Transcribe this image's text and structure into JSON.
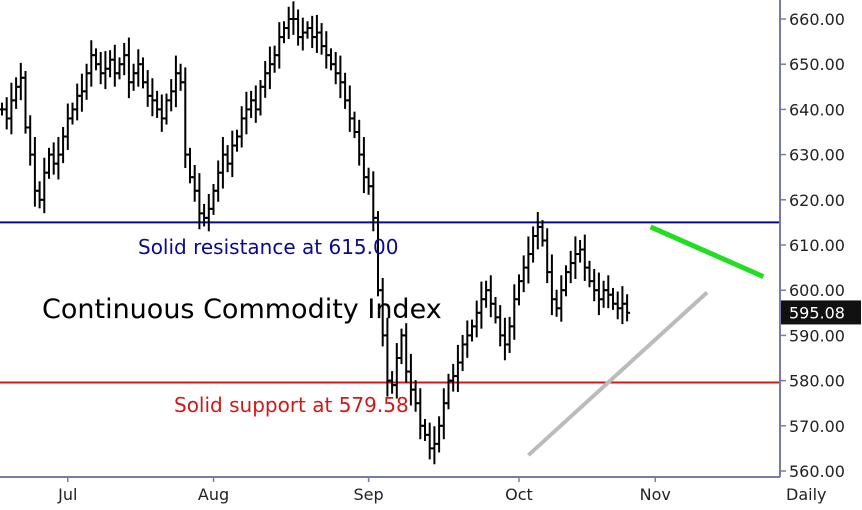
{
  "chart_data": {
    "type": "ohlc",
    "title": "Continuous Commodity Index",
    "period_label": "Daily",
    "ylim": [
      559,
      664
    ],
    "y_ticks": [
      "560.00",
      "570.00",
      "580.00",
      "590.00",
      "600.00",
      "610.00",
      "620.00",
      "630.00",
      "640.00",
      "650.00",
      "660.00"
    ],
    "y_tick_values": [
      560,
      570,
      580,
      590,
      600,
      610,
      620,
      630,
      640,
      650,
      660
    ],
    "x_months": [
      {
        "label": "Jul",
        "index": 14
      },
      {
        "label": "Aug",
        "index": 45
      },
      {
        "label": "Sep",
        "index": 78
      },
      {
        "label": "Oct",
        "index": 110
      },
      {
        "label": "Nov",
        "index": 139
      }
    ],
    "last_price": "595.08",
    "last_value": 595.08,
    "horizontal_lines": [
      {
        "value": 615.0,
        "label": "Solid resistance at 615.00",
        "color": "#0a0a8c"
      },
      {
        "value": 579.58,
        "label": "Solid support at 579.58",
        "color": "#d01818"
      }
    ],
    "trendlines": [
      {
        "name": "green",
        "color": "#22dd22",
        "from": [
          138,
          614.0
        ],
        "to": [
          162,
          603.0
        ]
      },
      {
        "name": "gray",
        "color": "#bbbbbb",
        "from": [
          112,
          563.5
        ],
        "to": [
          150,
          599.5
        ]
      }
    ],
    "closes": [
      640,
      638,
      642,
      645,
      647,
      636,
      630,
      622,
      620,
      626,
      630,
      628,
      630,
      634,
      638,
      640,
      643,
      644,
      648,
      652,
      650,
      648,
      649,
      651,
      648,
      650,
      652,
      646,
      648,
      650,
      646,
      643,
      642,
      640,
      638,
      642,
      644,
      648,
      646,
      630,
      625,
      622,
      617,
      616,
      618,
      622,
      626,
      630,
      628,
      632,
      634,
      638,
      640,
      642,
      640,
      645,
      648,
      650,
      652,
      656,
      658,
      660,
      660,
      656,
      657,
      658,
      656,
      657,
      654,
      652,
      650,
      648,
      646,
      642,
      638,
      635,
      630,
      625,
      623,
      616,
      600,
      590,
      580,
      579,
      585,
      590,
      582,
      578,
      575,
      570,
      568,
      565,
      566,
      570,
      575,
      580,
      581,
      584,
      588,
      590,
      592,
      595,
      598,
      600,
      597,
      594,
      590,
      588,
      592,
      598,
      602,
      605,
      608,
      612,
      614,
      611,
      604,
      598,
      596,
      600,
      604,
      606,
      608,
      609,
      605,
      602,
      600,
      598,
      600,
      599,
      597,
      596,
      597,
      595
    ]
  },
  "colors": {
    "bars": "#000000",
    "price_tag_bg": "#111111",
    "price_tag_text": "#ffffff",
    "axis": "#7a7aa8"
  }
}
